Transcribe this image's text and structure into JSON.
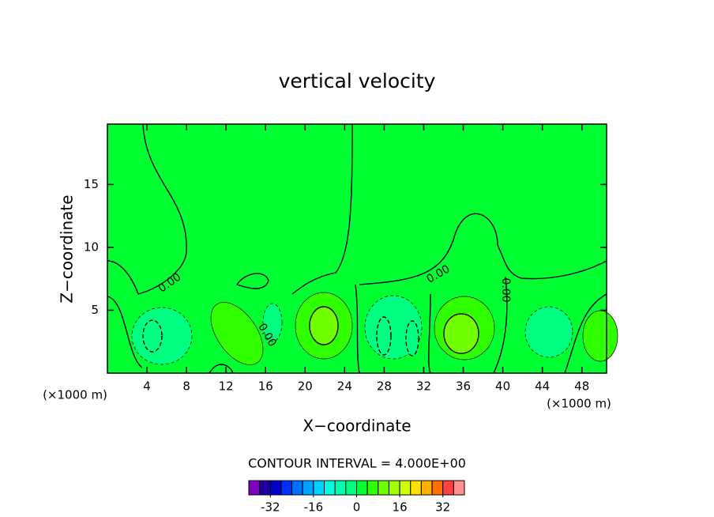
{
  "chart_data": {
    "type": "contour",
    "title": "vertical velocity",
    "x_label": "X−coordinate",
    "y_label": "Z−coordinate",
    "x_unit": "(×1000 m)",
    "xlim": [
      0,
      50.5
    ],
    "xticks": [
      4,
      8,
      12,
      16,
      20,
      24,
      28,
      32,
      36,
      40,
      44,
      48
    ],
    "ylim": [
      0,
      19.8
    ],
    "yticks": [
      5,
      10,
      15
    ],
    "contour_labels": [
      "0.00",
      "0.00",
      "0.00",
      "0.00"
    ],
    "contour_interval": "CONTOUR INTERVAL = 4.000E+00",
    "colorbar": {
      "levels": [
        -40,
        -36,
        -32,
        -28,
        -24,
        -20,
        -16,
        -12,
        -8,
        -4,
        0,
        4,
        8,
        12,
        16,
        20,
        24,
        28,
        32,
        36,
        40
      ],
      "colors": [
        "#8000c0",
        "#2000a0",
        "#0000c8",
        "#0030ff",
        "#0070ff",
        "#00a0ff",
        "#00d0ff",
        "#00ffe0",
        "#00ffb0",
        "#00ff80",
        "#00ff30",
        "#30ff00",
        "#70ff00",
        "#a0ff00",
        "#d0ff00",
        "#ffe000",
        "#ffb000",
        "#ff7000",
        "#ff4040",
        "#ff9090"
      ],
      "ticks": [
        -32,
        -16,
        0,
        16,
        32
      ]
    }
  }
}
